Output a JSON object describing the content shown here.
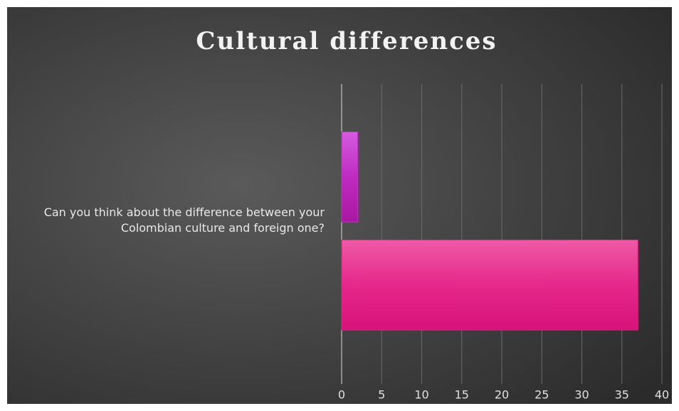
{
  "chart_data": {
    "type": "bar",
    "orientation": "horizontal",
    "title": "Cultural differences",
    "categories": [
      "Can you think about the difference between your Colombian culture and foreign one?"
    ],
    "series": [
      {
        "color": "#c22fc4",
        "values": [
          2
        ]
      },
      {
        "color": "#e61f86",
        "values": [
          37
        ]
      }
    ],
    "xlim": [
      0,
      40
    ],
    "xticks": [
      0,
      5,
      10,
      15,
      20,
      25,
      30,
      35,
      40
    ],
    "grid": true
  }
}
